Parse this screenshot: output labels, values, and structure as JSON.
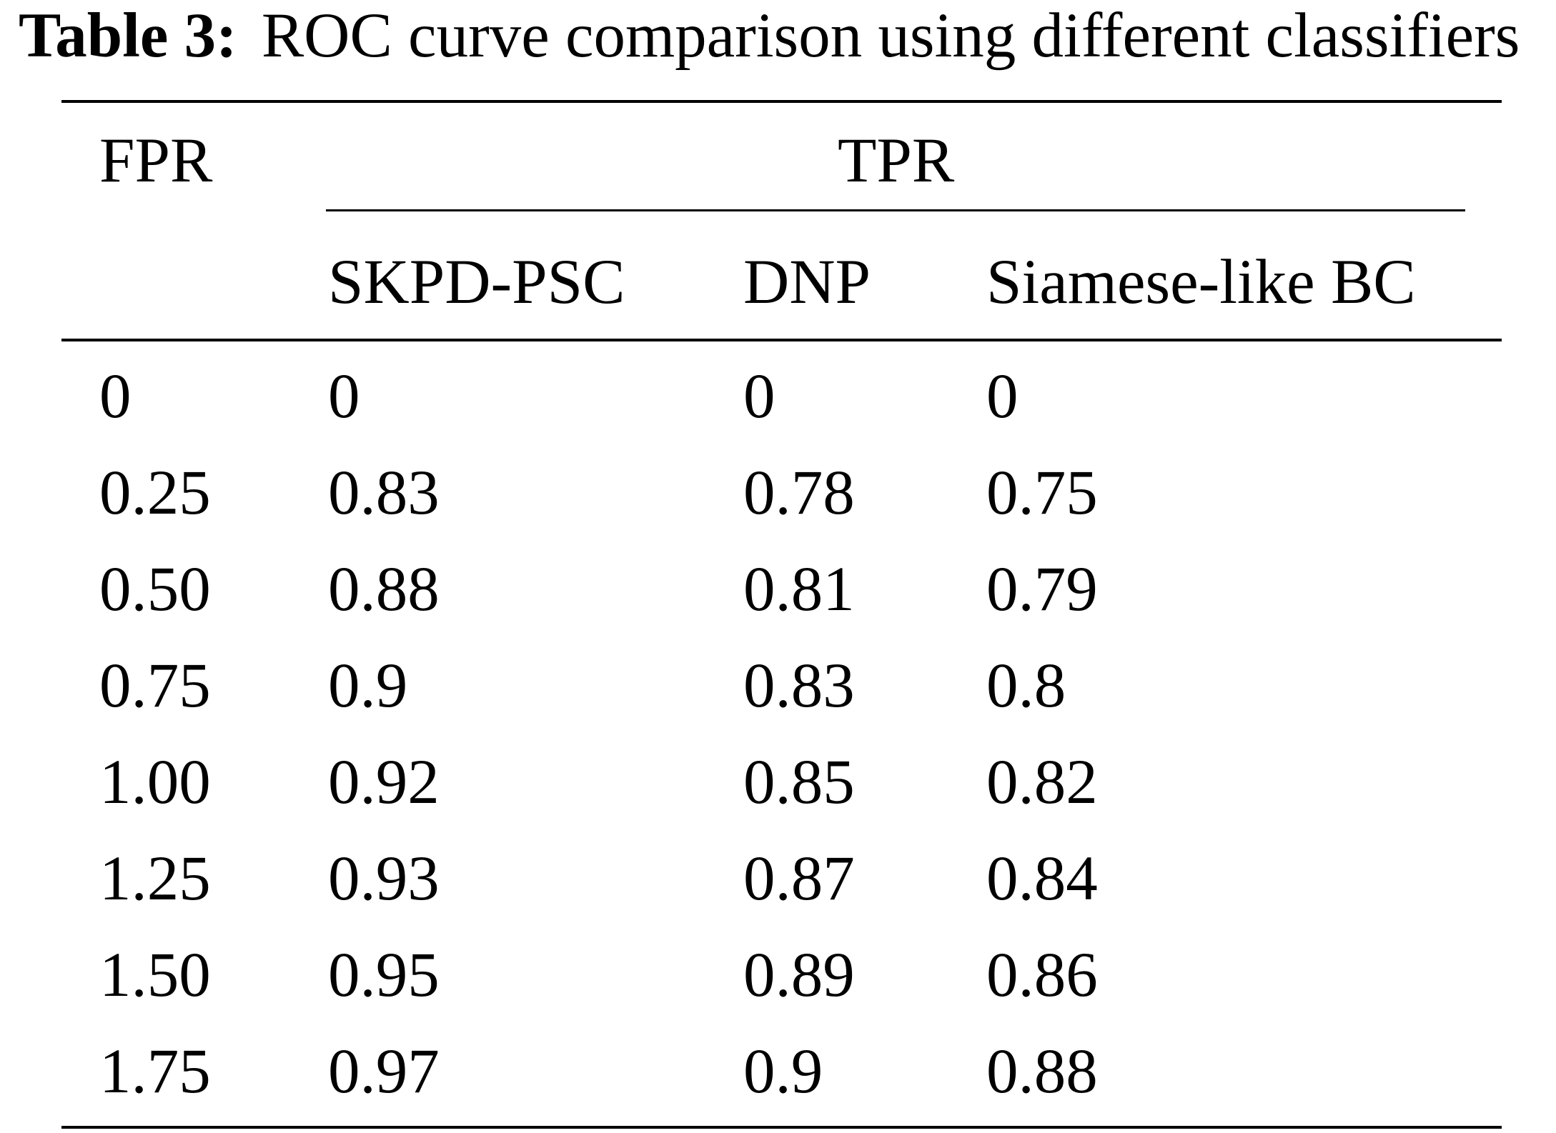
{
  "caption": {
    "label": "Table 3:",
    "text": "ROC curve comparison using different classifiers"
  },
  "header": {
    "fpr": "FPR",
    "tpr": "TPR",
    "columns": [
      "SKPD-PSC",
      "DNP",
      "Siamese-like BC"
    ]
  },
  "rows": [
    [
      "0",
      "0",
      "0",
      "0"
    ],
    [
      "0.25",
      "0.83",
      "0.78",
      "0.75"
    ],
    [
      "0.50",
      "0.88",
      "0.81",
      "0.79"
    ],
    [
      "0.75",
      "0.9",
      "0.83",
      "0.8"
    ],
    [
      "1.00",
      "0.92",
      "0.85",
      "0.82"
    ],
    [
      "1.25",
      "0.93",
      "0.87",
      "0.84"
    ],
    [
      "1.50",
      "0.95",
      "0.89",
      "0.86"
    ],
    [
      "1.75",
      "0.97",
      "0.9",
      "0.88"
    ]
  ]
}
